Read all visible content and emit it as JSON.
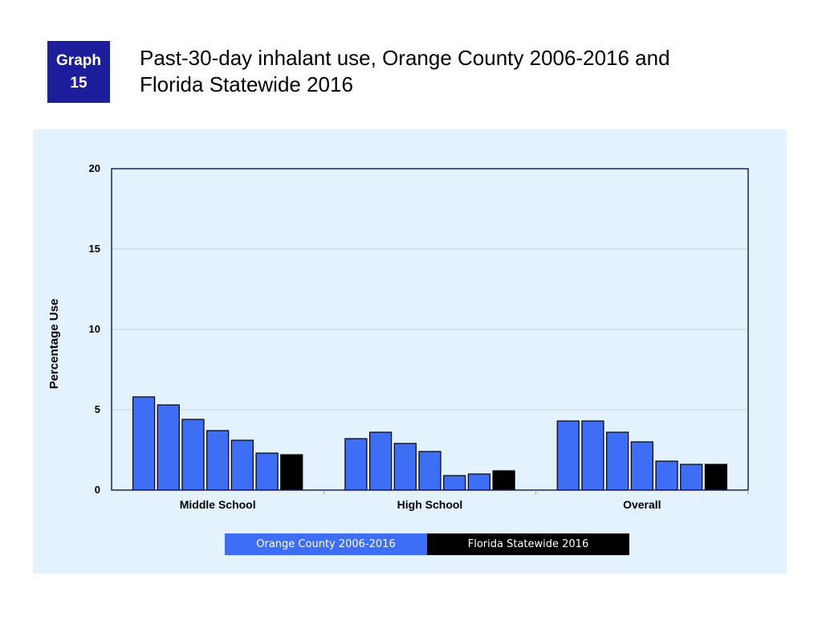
{
  "badge": {
    "line1": "Graph",
    "line2": "15"
  },
  "title": {
    "line1": "Past-30-day inhalant use, Orange County 2006-2016 and",
    "line2": "Florida Statewide 2016"
  },
  "colors": {
    "county": "#3d6ef5",
    "statewide": "#000000",
    "panel": "#e3f2fd",
    "axis": "#1c1e6e",
    "badge": "#1c1e9c"
  },
  "chart_data": {
    "type": "bar",
    "categories": [
      "Middle School",
      "High School",
      "Overall"
    ],
    "series": [
      {
        "name": "Orange County 2006-2016",
        "group": "county",
        "values": [
          [
            5.8,
            5.3,
            4.4,
            3.7,
            3.1,
            2.3
          ],
          [
            3.2,
            3.6,
            2.9,
            2.4,
            0.9,
            1.0
          ],
          [
            4.3,
            4.3,
            3.6,
            3.0,
            1.8,
            1.6
          ]
        ]
      },
      {
        "name": "Florida Statewide 2016",
        "group": "statewide",
        "values": [
          2.2,
          1.2,
          1.6
        ]
      }
    ],
    "ylabel": "Percentage Use",
    "xlabel": "",
    "ylim": [
      0,
      20
    ],
    "yticks": [
      0,
      5,
      10,
      15,
      20
    ],
    "grid": true,
    "legend": "bottom"
  },
  "legend": {
    "county": "Orange County 2006-2016",
    "statewide": "Florida Statewide 2016"
  }
}
